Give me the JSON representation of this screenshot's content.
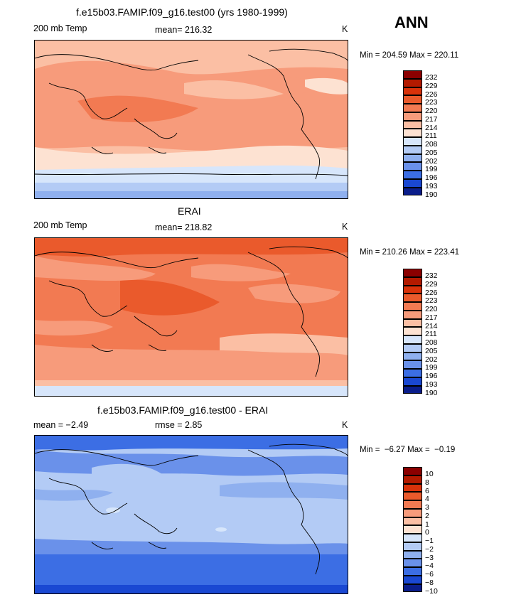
{
  "season": "ANN",
  "panels": [
    {
      "title": "f.e15b03.FAMIP.f09_g16.test00 (yrs 1980-1999)",
      "left_label": "200 mb Temp",
      "mean_label": "mean= 216.32",
      "units": "K",
      "minmax": "Min = 204.59 Max = 220.11",
      "cbar_labels": [
        "232",
        "229",
        "226",
        "223",
        "220",
        "217",
        "214",
        "211",
        "208",
        "205",
        "202",
        "199",
        "196",
        "193",
        "190"
      ]
    },
    {
      "title": "ERAI",
      "left_label": "200 mb Temp",
      "mean_label": "mean= 218.82",
      "units": "K",
      "minmax": "Min = 210.26 Max = 223.41",
      "cbar_labels": [
        "232",
        "229",
        "226",
        "223",
        "220",
        "217",
        "214",
        "211",
        "208",
        "205",
        "202",
        "199",
        "196",
        "193",
        "190"
      ]
    },
    {
      "title": "f.e15b03.FAMIP.f09_g16.test00 - ERAI",
      "left_label": "mean =  −2.49",
      "mean_label": "rmse =   2.85",
      "units": "K",
      "minmax": "Min =  −6.27 Max =  −0.19",
      "cbar_labels": [
        "10",
        "8",
        "6",
        "4",
        "3",
        "2",
        "1",
        "0",
        "−1",
        "−2",
        "−3",
        "−4",
        "−6",
        "−8",
        "−10"
      ]
    }
  ],
  "colors": {
    "palette": [
      "#8b0000",
      "#b31a00",
      "#d9320a",
      "#ea5a2c",
      "#f27a52",
      "#f79b7b",
      "#fbbfa4",
      "#fde2d2",
      "#d7e6fb",
      "#b3cbf5",
      "#8fb0ef",
      "#6a91ea",
      "#3c6ee4",
      "#1a48d2",
      "#0a1d8a"
    ],
    "land_outline": "#000000"
  }
}
